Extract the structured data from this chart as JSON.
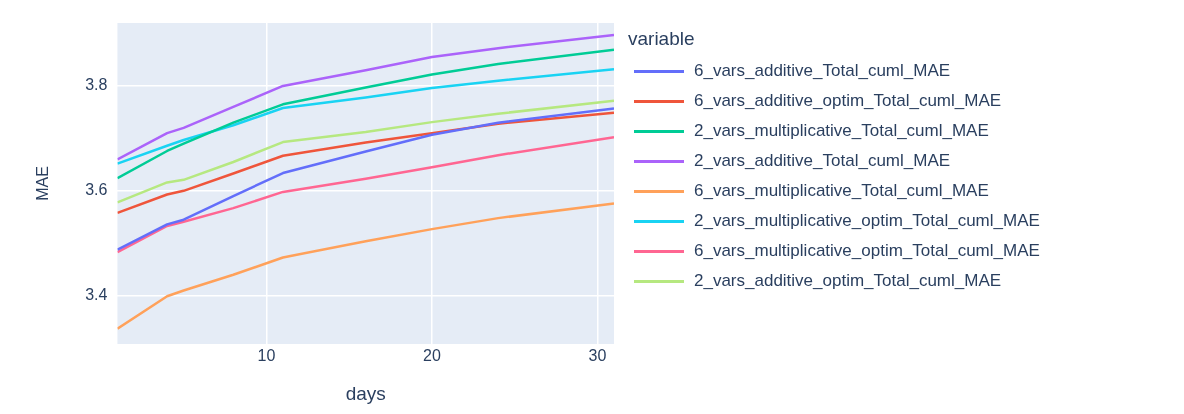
{
  "chart_data": {
    "type": "line",
    "xlabel": "days",
    "ylabel": "MAE",
    "legend_title": "variable",
    "legend": "right",
    "grid": true,
    "marker": "none",
    "line_style": "solid",
    "xlim": [
      1,
      31
    ],
    "ylim": [
      3.308,
      3.92
    ],
    "xticks": [
      10,
      20,
      30
    ],
    "yticks": [
      3.4,
      3.6,
      3.8
    ],
    "x": [
      1,
      4,
      5,
      8,
      11,
      16,
      20,
      24,
      31
    ],
    "series": [
      {
        "name": "6_vars_additive_Total_cuml_MAE",
        "color": "#636efa",
        "values": [
          3.488,
          3.536,
          3.545,
          3.59,
          3.634,
          3.675,
          3.707,
          3.73,
          3.757
        ]
      },
      {
        "name": "6_vars_additive_optim_Total_cuml_MAE",
        "color": "#ef553b",
        "values": [
          3.558,
          3.593,
          3.6,
          3.633,
          3.667,
          3.692,
          3.71,
          3.728,
          3.749
        ]
      },
      {
        "name": "2_vars_multiplicative_Total_cuml_MAE",
        "color": "#00cc96",
        "values": [
          3.624,
          3.676,
          3.69,
          3.73,
          3.765,
          3.797,
          3.822,
          3.842,
          3.869
        ]
      },
      {
        "name": "2_vars_additive_Total_cuml_MAE",
        "color": "#ab63fa",
        "values": [
          3.66,
          3.71,
          3.72,
          3.76,
          3.8,
          3.83,
          3.855,
          3.872,
          3.897
        ]
      },
      {
        "name": "6_vars_multiplicative_Total_cuml_MAE",
        "color": "#ffa15a",
        "values": [
          3.337,
          3.399,
          3.41,
          3.44,
          3.473,
          3.504,
          3.527,
          3.548,
          3.576
        ]
      },
      {
        "name": "2_vars_multiplicative_optim_Total_cuml_MAE",
        "color": "#19d3f3",
        "values": [
          3.652,
          3.686,
          3.697,
          3.725,
          3.758,
          3.778,
          3.796,
          3.81,
          3.832
        ]
      },
      {
        "name": "6_vars_multiplicative_optim_Total_cuml_MAE",
        "color": "#ff6692",
        "values": [
          3.483,
          3.533,
          3.541,
          3.567,
          3.598,
          3.623,
          3.645,
          3.668,
          3.702
        ]
      },
      {
        "name": "2_vars_additive_optim_Total_cuml_MAE",
        "color": "#b6e880",
        "values": [
          3.578,
          3.616,
          3.621,
          3.655,
          3.693,
          3.712,
          3.731,
          3.747,
          3.772
        ]
      }
    ]
  }
}
